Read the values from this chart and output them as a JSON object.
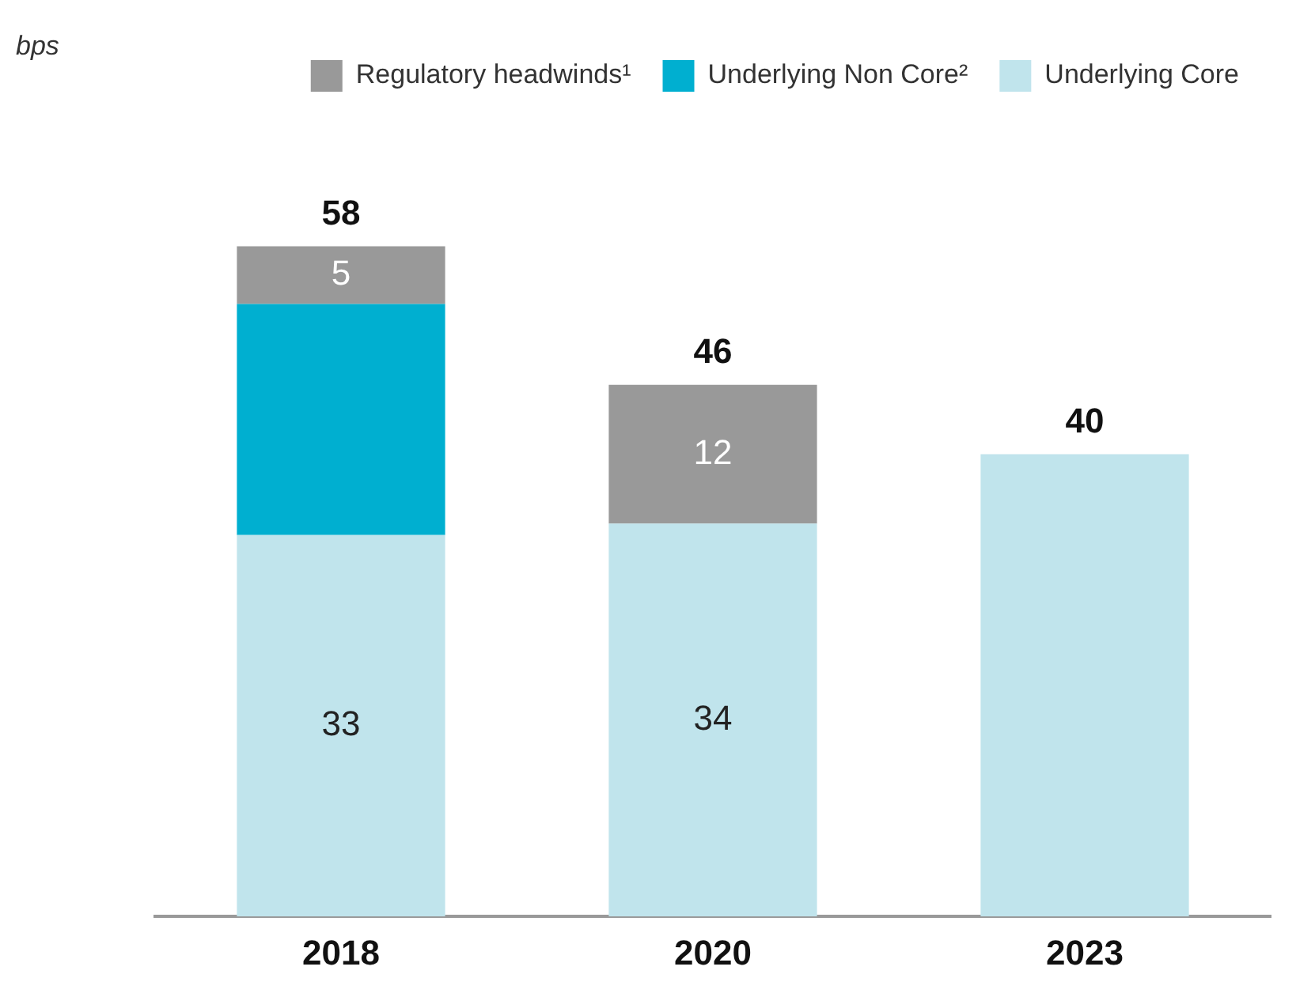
{
  "chart_data": {
    "type": "bar",
    "stacked": true,
    "annotations": [
      "bps"
    ],
    "legend": "top",
    "categories": [
      "2018",
      "2020",
      "2023"
    ],
    "series": [
      {
        "name": "Underlying Core",
        "color": "#c0e4ec",
        "values": [
          33,
          34,
          40
        ],
        "value_labels": [
          "33",
          "34",
          null
        ]
      },
      {
        "name": "Underlying Non Core²",
        "color": "#00afd0",
        "values": [
          20,
          null,
          null
        ],
        "value_labels": [
          null,
          null,
          null
        ]
      },
      {
        "name": "Regulatory headwinds¹",
        "color": "#999999",
        "values": [
          5,
          12,
          null
        ],
        "value_labels": [
          "5",
          "12",
          null
        ]
      }
    ],
    "totals": [
      "58",
      "46",
      "40"
    ]
  }
}
